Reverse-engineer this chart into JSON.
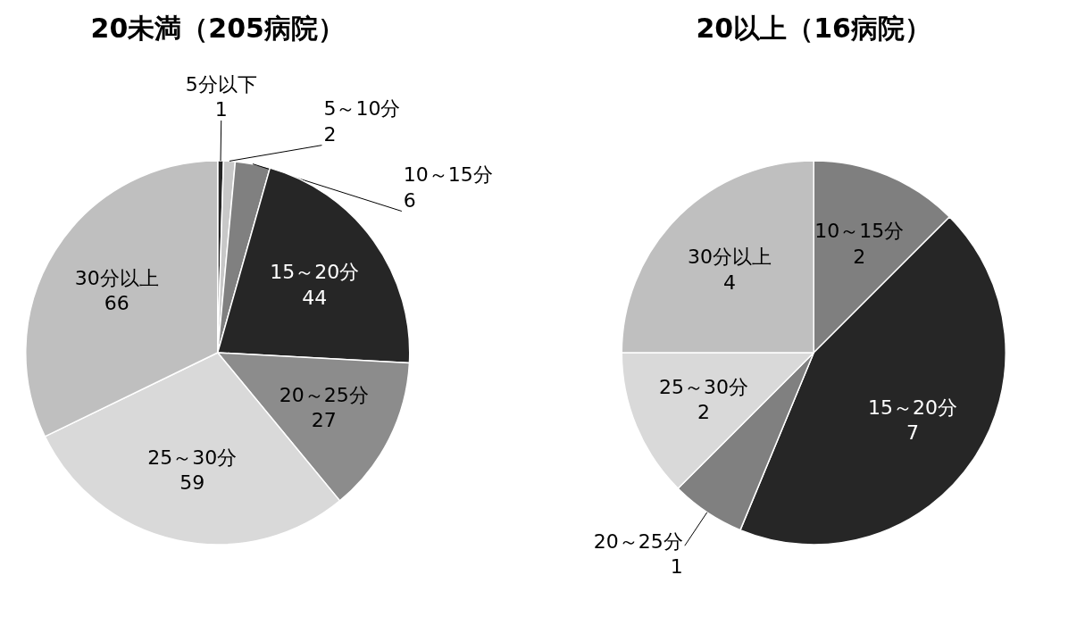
{
  "chart_data": [
    {
      "type": "pie",
      "title": "20未満（205病院）",
      "categories": [
        "5分以下",
        "5～10分",
        "10～15分",
        "15～20分",
        "20～25分",
        "25～30分",
        "30分以上"
      ],
      "values": [
        1,
        2,
        6,
        44,
        27,
        59,
        66
      ],
      "colors": [
        "#262626",
        "#c8c8c8",
        "#808080",
        "#262626",
        "#8c8c8c",
        "#d9d9d9",
        "#bfbfbf"
      ],
      "data_labels": true
    },
    {
      "type": "pie",
      "title": "20以上（16病院）",
      "categories": [
        "10～15分",
        "15～20分",
        "20～25分",
        "25～30分",
        "30分以上"
      ],
      "values": [
        2,
        7,
        1,
        2,
        4
      ],
      "colors": [
        "#7f7f7f",
        "#262626",
        "#808080",
        "#d9d9d9",
        "#bfbfbf"
      ],
      "data_labels": true
    }
  ]
}
